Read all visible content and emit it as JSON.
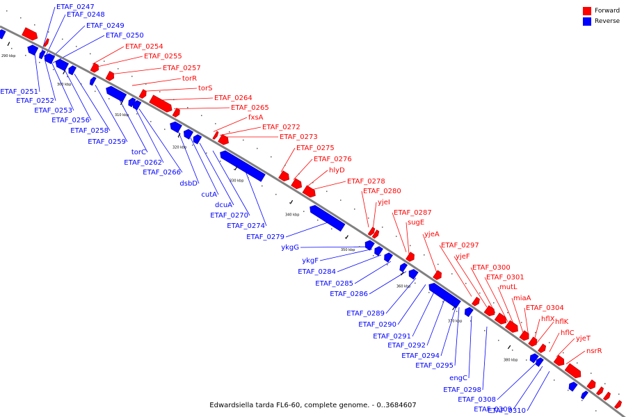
{
  "caption": "Edwardsiella tarda FL6-60, complete genome. - 0..3684607",
  "legend": [
    {
      "label": "Forward",
      "color": "#ff0000"
    },
    {
      "label": "Reverse",
      "color": "#0000ff"
    }
  ],
  "colors": {
    "forward": "#ff0000",
    "reverse": "#0000ff",
    "backbone": "#808080"
  },
  "ticks": [
    "290 kbp",
    "300 kbp",
    "310 kbp",
    "320 kbp",
    "330 kbp",
    "340 kbp",
    "350 kbp",
    "360 kbp",
    "370 kbp",
    "380 kbp"
  ],
  "forward_labels": [
    "ETAF_0254",
    "ETAF_0255",
    "ETAF_0257",
    "torR",
    "torS",
    "ETAF_0264",
    "ETAF_0265",
    "fxsA",
    "ETAF_0272",
    "ETAF_0273",
    "ETAF_0275",
    "ETAF_0276",
    "hlyD",
    "ETAF_0278",
    "ETAF_0280",
    "yjeI",
    "ETAF_0287",
    "sugE",
    "yjeA",
    "ETAF_0297",
    "yjeF",
    "ETAF_0300",
    "ETAF_0301",
    "mutL",
    "miaA",
    "ETAF_0304",
    "hflX",
    "hflK",
    "hflC",
    "yjeT",
    "nsrR"
  ],
  "reverse_top_labels": [
    "ETAF_0247",
    "ETAF_0248",
    "ETAF_0249",
    "ETAF_0250"
  ],
  "reverse_labels": [
    "ETAF_0251",
    "ETAF_0252",
    "ETAF_0253",
    "ETAF_0256",
    "ETAF_0258",
    "ETAF_0259",
    "torC",
    "ETAF_0262",
    "ETAF_0266",
    "dsbD",
    "cutA",
    "dcuA",
    "ETAF_0270",
    "ETAF_0274",
    "ETAF_0279",
    "ykgG",
    "ykgF",
    "ETAF_0284",
    "ETAF_0285",
    "ETAF_0286",
    "ETAF_0289",
    "ETAF_0290",
    "ETAF_0291",
    "ETAF_0292",
    "ETAF_0294",
    "ETAF_0295",
    "engC",
    "ETAF_0298",
    "ETAF_0308",
    "ETAF_0309",
    "ETAF_0310"
  ]
}
